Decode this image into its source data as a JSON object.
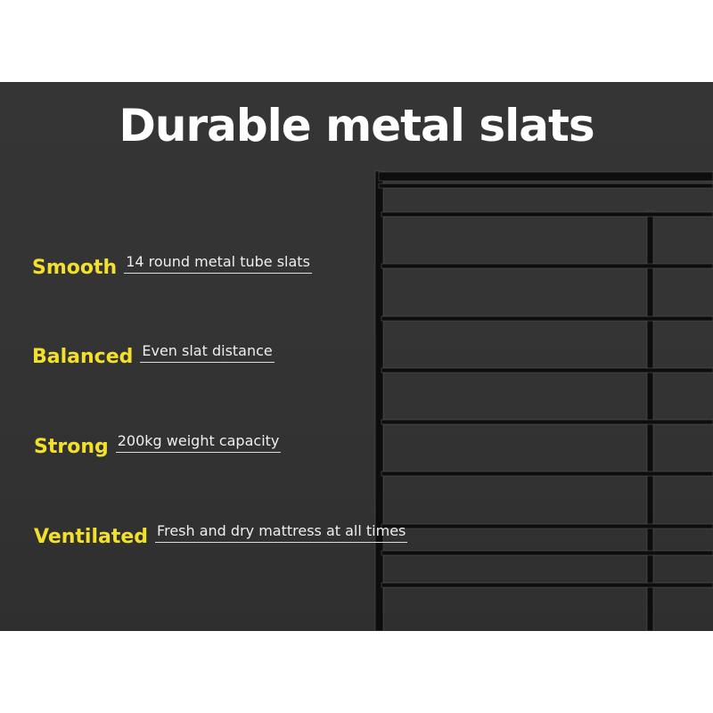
{
  "title": "Durable metal slats",
  "colors": {
    "background": "#333333",
    "accent": "#f2e02a",
    "frame": "#0d0d0d"
  },
  "features": [
    {
      "label": "Smooth",
      "text": "14 round metal tube slats"
    },
    {
      "label": "Balanced",
      "text": "Even slat distance"
    },
    {
      "label": "Strong",
      "text": "200kg weight capacity"
    },
    {
      "label": "Ventilated",
      "text": "Fresh and dry mattress at all times"
    }
  ]
}
